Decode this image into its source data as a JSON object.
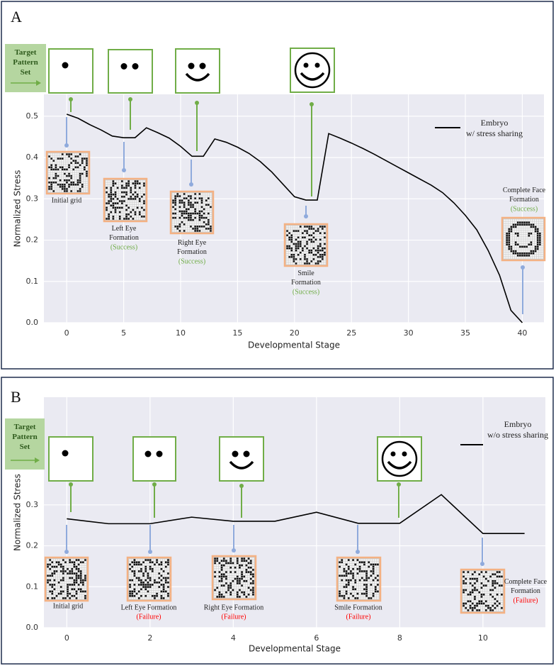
{
  "chart_data": [
    {
      "type": "line",
      "panel": "A",
      "target_label": "Target\nPattern\nSet",
      "xlabel": "Developmental Stage",
      "ylabel": "Normalized Stress",
      "x": [
        0,
        1,
        2,
        3,
        4,
        5,
        6,
        7,
        8,
        9,
        10,
        11,
        12,
        13,
        14,
        15,
        16,
        17,
        18,
        19,
        20,
        21,
        22,
        23,
        24,
        25,
        26,
        27,
        28,
        29,
        30,
        31,
        32,
        33,
        34,
        35,
        36,
        37,
        38,
        39,
        40
      ],
      "series": [
        {
          "name": "Embryo\nw/ stress sharing",
          "color": "#000000",
          "values": [
            0.505,
            0.495,
            0.48,
            0.467,
            0.452,
            0.448,
            0.448,
            0.472,
            0.46,
            0.447,
            0.427,
            0.403,
            0.403,
            0.445,
            0.437,
            0.425,
            0.41,
            0.39,
            0.365,
            0.335,
            0.305,
            0.297,
            0.297,
            0.458,
            0.447,
            0.435,
            0.422,
            0.408,
            0.393,
            0.378,
            0.363,
            0.348,
            0.333,
            0.315,
            0.29,
            0.26,
            0.225,
            0.175,
            0.115,
            0.03,
            0.0
          ]
        }
      ],
      "xlim": [
        -2,
        41.9
      ],
      "ylim": [
        0,
        0.553
      ],
      "xticks": [
        0,
        5,
        10,
        15,
        20,
        25,
        30,
        35,
        40
      ],
      "yticks": [
        {
          "value": 0,
          "label": "0.0"
        },
        0.1,
        0.2,
        0.3,
        0.4,
        0.5
      ],
      "grid": true,
      "status_color": "#70ad47",
      "annotations": [
        {
          "text": "Initial grid"
        },
        {
          "text": "Left Eye\nFormation",
          "status": "(Success)"
        },
        {
          "text": "Right Eye\nFormation",
          "status": "(Success)"
        },
        {
          "text": "Smile\nFormation",
          "status": "(Success)"
        },
        {
          "text": "Complete Face\nFormation",
          "status": "(Success)"
        }
      ]
    },
    {
      "type": "line",
      "panel": "B",
      "target_label": "Target\nPattern\nSet",
      "xlabel": "Developmental Stage",
      "ylabel": "Normalized Stress",
      "x": [
        0,
        1,
        2,
        3,
        4,
        5,
        6,
        7,
        8,
        9,
        10,
        11
      ],
      "series": [
        {
          "name": "Embryo\nw/o stress sharing",
          "color": "#000000",
          "values": [
            0.266,
            0.254,
            0.254,
            0.27,
            0.26,
            0.26,
            0.282,
            0.255,
            0.255,
            0.325,
            0.23,
            0.23
          ]
        }
      ],
      "xlim": [
        -0.55,
        11.5
      ],
      "ylim": [
        0,
        0.563
      ],
      "xticks": [
        0,
        2,
        4,
        6,
        8,
        10
      ],
      "yticks": [
        {
          "value": 0,
          "label": "0.0"
        },
        0.1,
        0.2,
        0.3
      ],
      "grid": true,
      "status_color": "#ff0000",
      "annotations": [
        {
          "text": "Initial grid"
        },
        {
          "text": "Left Eye Formation",
          "status": "(Failure)"
        },
        {
          "text": "Right Eye Formation",
          "status": "(Failure)"
        },
        {
          "text": "Smile Formation",
          "status": "(Failure)"
        },
        {
          "text": "Complete Face\nFormation",
          "status": "(Failure)"
        }
      ]
    }
  ]
}
